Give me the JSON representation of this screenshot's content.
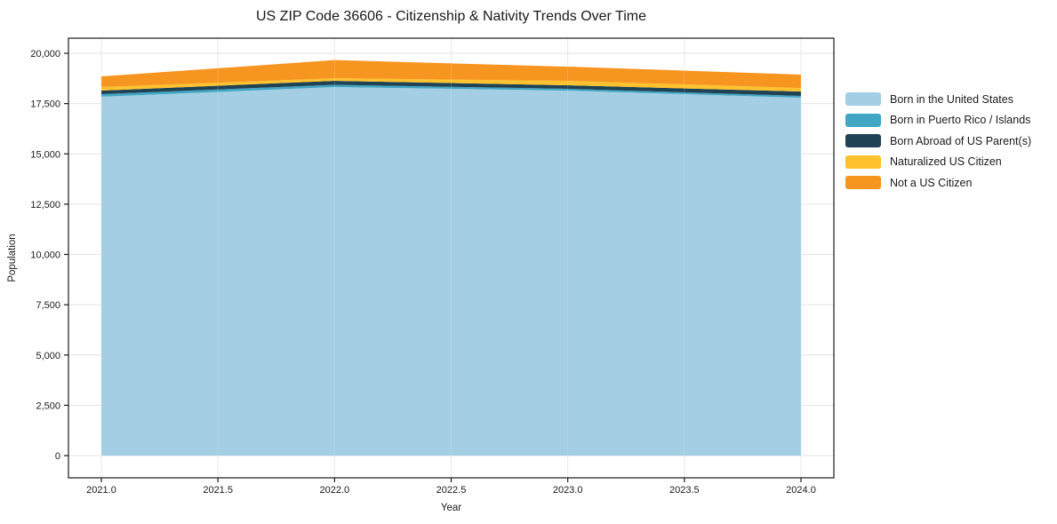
{
  "chart_data": {
    "type": "area",
    "stacked": true,
    "title": "US ZIP Code 36606 - Citizenship & Nativity Trends Over Time",
    "xlabel": "Year",
    "ylabel": "Population",
    "x": [
      2021,
      2022,
      2023,
      2024
    ],
    "series": [
      {
        "name": "Born in the United States",
        "color": "#a3cee3",
        "values": [
          17840,
          18320,
          18145,
          17790
        ]
      },
      {
        "name": "Born in Puerto Rico / Islands",
        "color": "#41a6c3",
        "values": [
          130,
          110,
          90,
          90
        ]
      },
      {
        "name": "Born Abroad of US Parent(s)",
        "color": "#1f4254",
        "values": [
          175,
          200,
          175,
          220
        ]
      },
      {
        "name": "Naturalized US Citizen",
        "color": "#fdc22e",
        "values": [
          175,
          130,
          220,
          175
        ]
      },
      {
        "name": "Not a US Citizen",
        "color": "#f79521",
        "values": [
          530,
          905,
          705,
          665
        ]
      }
    ],
    "totals": [
      18850,
      19665,
      19335,
      18940
    ],
    "x_ticks": {
      "values": [
        2021.0,
        2021.5,
        2022.0,
        2022.5,
        2023.0,
        2023.5,
        2024.0
      ],
      "labels": [
        "2021.0",
        "2021.5",
        "2022.0",
        "2022.5",
        "2023.0",
        "2023.5",
        "2024.0"
      ]
    },
    "y_ticks": {
      "values": [
        0,
        2500,
        5000,
        7500,
        10000,
        12500,
        15000,
        17500,
        20000
      ],
      "labels": [
        "0",
        "2,500",
        "5,000",
        "7,500",
        "10,000",
        "12,500",
        "15,000",
        "17,500",
        "20,000"
      ]
    },
    "xlim": [
      2020.86,
      2024.14
    ],
    "ylim": [
      -1100,
      20750
    ],
    "grid": true,
    "legend_position": "right-outside"
  },
  "colors": {
    "background": "#ffffff",
    "frame": "#1a1a1a",
    "grid": "#e4e4e4",
    "text": "#1a1a1a"
  }
}
